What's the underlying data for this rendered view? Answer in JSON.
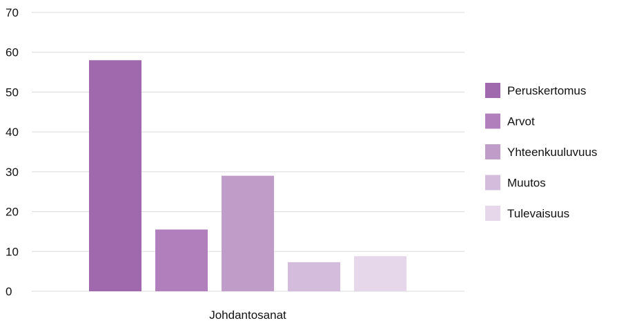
{
  "chart_data": {
    "type": "bar",
    "categories": [
      "Johdantosanat"
    ],
    "series": [
      {
        "name": "Peruskertomus",
        "values": [
          58
        ],
        "color": "#a068ad"
      },
      {
        "name": "Arvot",
        "values": [
          15.5
        ],
        "color": "#b07fbc"
      },
      {
        "name": "Yhteenkuuluvuus",
        "values": [
          29
        ],
        "color": "#c09cc8"
      },
      {
        "name": "Muutos",
        "values": [
          7.3
        ],
        "color": "#d3bcdc"
      },
      {
        "name": "Tulevaisuus",
        "values": [
          8.8
        ],
        "color": "#e6d8ea"
      }
    ],
    "y_ticks": [
      "0",
      "10",
      "20",
      "30",
      "40",
      "50",
      "60",
      "70"
    ],
    "ylim": [
      0,
      70
    ],
    "grid": true,
    "legend_position": "right",
    "title": "",
    "xlabel": "",
    "ylabel": ""
  }
}
